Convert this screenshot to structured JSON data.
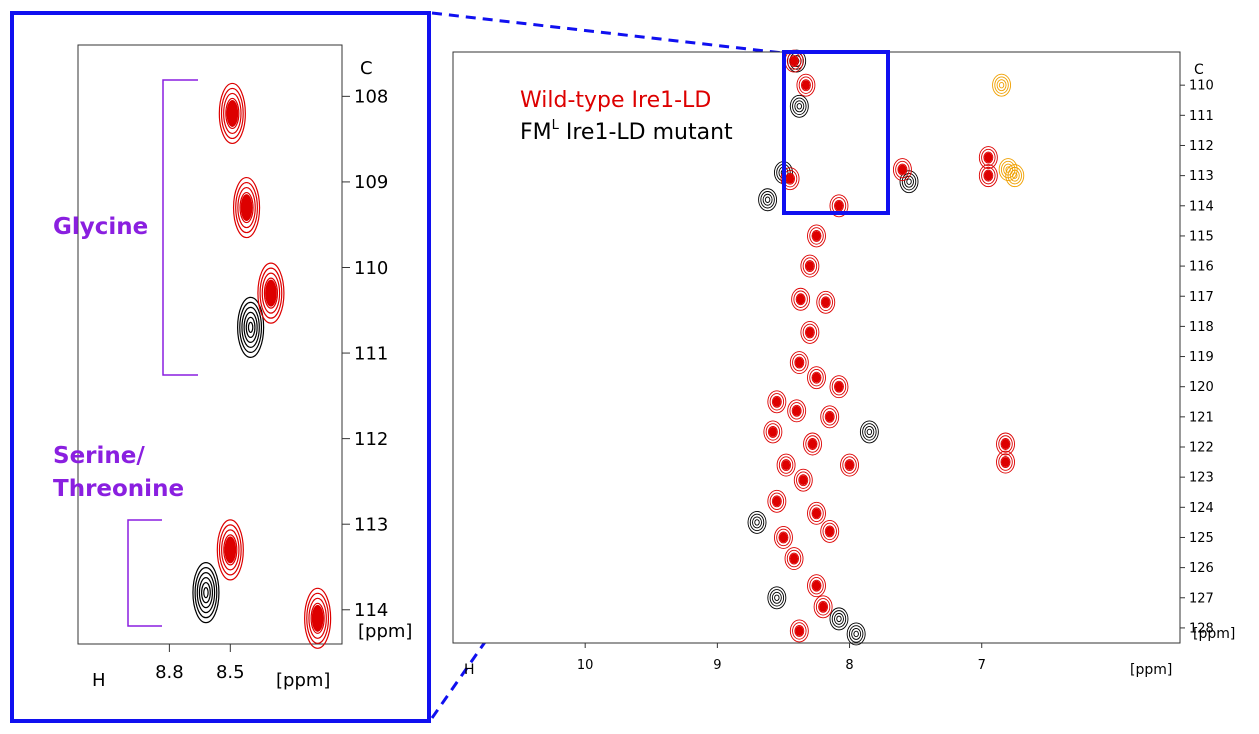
{
  "legend": {
    "wildtype": "Wild-type Ire1-LD",
    "mutant_prefix": "FM",
    "mutant_sup": "L",
    "mutant_suffix": " Ire1-LD mutant"
  },
  "colors": {
    "wildtype": "#dd0000",
    "mutant": "#000000",
    "extra": "#f0a000",
    "annotation": "#8a1fe0",
    "highlight": "#1010f0"
  },
  "inset": {
    "glycine_label": "Glycine",
    "serine_label_1": "Serine/",
    "serine_label_2": "Threonine"
  },
  "chart_data": [
    {
      "type": "scatter",
      "title": "",
      "x_axis_label": "H",
      "x_units": "[ppm]",
      "y_axis_label": "C",
      "y_units": "[ppm]",
      "xlim": [
        11.0,
        5.5
      ],
      "ylim": [
        128.5,
        108.9
      ],
      "x_ticks": [
        10,
        9,
        8,
        7
      ],
      "y_ticks": [
        110,
        111,
        112,
        113,
        114,
        115,
        116,
        117,
        118,
        119,
        120,
        121,
        122,
        123,
        124,
        125,
        126,
        127,
        128
      ],
      "series": [
        {
          "name": "Wild-type Ire1-LD",
          "points": [
            [
              8.42,
              109.2
            ],
            [
              8.33,
              110.0
            ],
            [
              8.45,
              113.1
            ],
            [
              8.08,
              114.0
            ],
            [
              8.25,
              115.0
            ],
            [
              8.3,
              116.0
            ],
            [
              8.37,
              117.1
            ],
            [
              8.18,
              117.2
            ],
            [
              8.3,
              118.2
            ],
            [
              8.38,
              119.2
            ],
            [
              8.25,
              119.7
            ],
            [
              8.08,
              120.0
            ],
            [
              8.55,
              120.5
            ],
            [
              8.4,
              120.8
            ],
            [
              8.15,
              121.0
            ],
            [
              8.58,
              121.5
            ],
            [
              8.28,
              121.9
            ],
            [
              8.48,
              122.6
            ],
            [
              8.35,
              123.1
            ],
            [
              8.0,
              122.6
            ],
            [
              8.55,
              123.8
            ],
            [
              8.25,
              124.2
            ],
            [
              8.5,
              125.0
            ],
            [
              8.15,
              124.8
            ],
            [
              8.42,
              125.7
            ],
            [
              8.25,
              126.6
            ],
            [
              8.2,
              127.3
            ],
            [
              8.38,
              128.1
            ],
            [
              7.6,
              112.8
            ],
            [
              6.95,
              112.4
            ],
            [
              6.95,
              113.0
            ],
            [
              6.82,
              121.9
            ],
            [
              6.82,
              122.5
            ]
          ]
        },
        {
          "name": "FM^L Ire1-LD mutant",
          "points": [
            [
              8.4,
              109.2
            ],
            [
              8.38,
              110.7
            ],
            [
              8.62,
              113.8
            ],
            [
              8.5,
              112.9
            ],
            [
              7.85,
              121.5
            ],
            [
              8.55,
              127.0
            ],
            [
              7.95,
              128.2
            ],
            [
              8.08,
              127.7
            ],
            [
              8.7,
              124.5
            ],
            [
              7.55,
              113.2
            ]
          ]
        },
        {
          "name": "",
          "points": [
            [
              6.75,
              113.0
            ],
            [
              6.8,
              112.8
            ],
            [
              6.85,
              110.0
            ]
          ]
        }
      ]
    },
    {
      "type": "scatter",
      "title": "",
      "x_axis_label": "H",
      "x_units": "[ppm]",
      "y_axis_label": "C",
      "y_units": "[ppm]",
      "xlim": [
        9.25,
        7.95
      ],
      "ylim": [
        114.4,
        107.4
      ],
      "x_ticks": [
        8.8,
        8.5
      ],
      "y_ticks": [
        108,
        109,
        110,
        111,
        112,
        113,
        114
      ],
      "series": [
        {
          "name": "Wild-type Ire1-LD",
          "points": [
            [
              8.49,
              108.2
            ],
            [
              8.42,
              109.3
            ],
            [
              8.3,
              110.3
            ],
            [
              8.5,
              113.3
            ],
            [
              8.07,
              114.1
            ]
          ]
        },
        {
          "name": "FM^L Ire1-LD mutant",
          "points": [
            [
              8.4,
              110.7
            ],
            [
              8.62,
              113.8
            ]
          ]
        }
      ]
    }
  ]
}
